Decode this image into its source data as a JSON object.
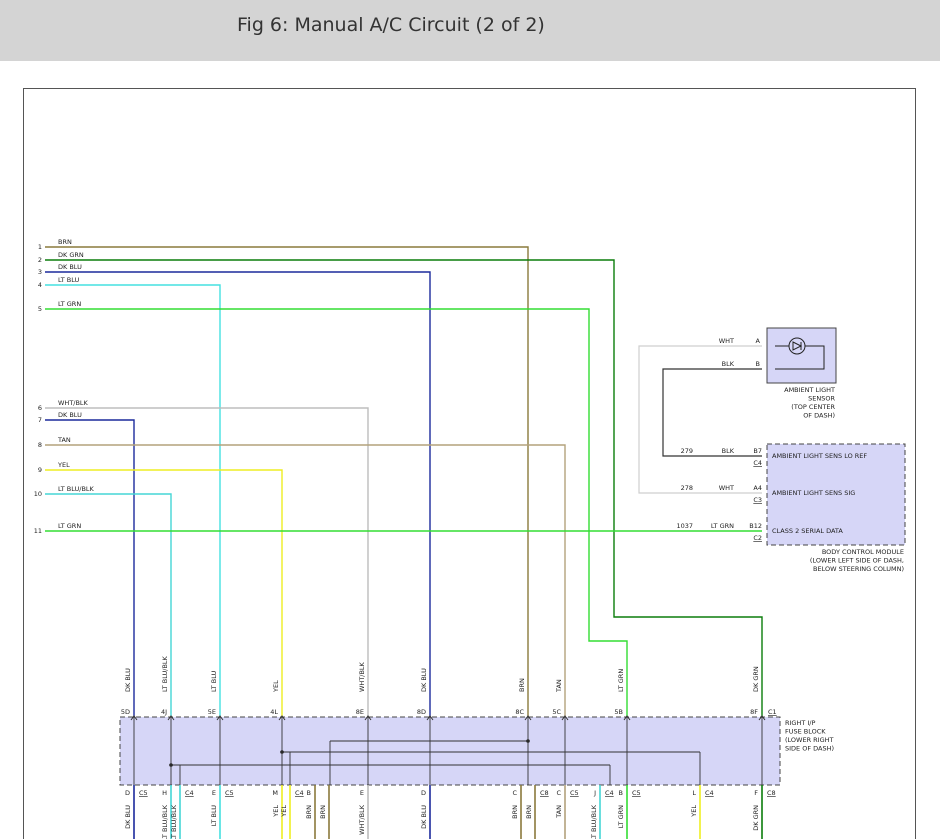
{
  "header": {
    "title": "Fig 6: Manual A/C Circuit (2 of 2)"
  },
  "wires": [
    {
      "pin": "1",
      "color": "BRN",
      "stroke": "#8a7a3c"
    },
    {
      "pin": "2",
      "color": "DK GRN",
      "stroke": "#0b7d0b"
    },
    {
      "pin": "3",
      "color": "DK BLU",
      "stroke": "#1c2a9c"
    },
    {
      "pin": "4",
      "color": "LT BLU",
      "stroke": "#45e0e0"
    },
    {
      "pin": "5",
      "color": "LT GRN",
      "stroke": "#33dd33"
    },
    {
      "pin": "6",
      "color": "WHT/BLK",
      "stroke": "#bdbdbd"
    },
    {
      "pin": "7",
      "color": "DK BLU",
      "stroke": "#1c2a9c"
    },
    {
      "pin": "8",
      "color": "TAN",
      "stroke": "#b3a27c"
    },
    {
      "pin": "9",
      "color": "YEL",
      "stroke": "#eeee22"
    },
    {
      "pin": "10",
      "color": "LT BLU/BLK",
      "stroke": "#45d6d6"
    },
    {
      "pin": "11",
      "color": "LT GRN",
      "stroke": "#33dd33"
    }
  ],
  "sensor": {
    "pins": [
      {
        "pin": "A",
        "color": "WHT"
      },
      {
        "pin": "B",
        "color": "BLK"
      }
    ],
    "label": [
      "AMBIENT LIGHT",
      "SENSOR",
      "(TOP CENTER",
      "OF DASH)"
    ]
  },
  "bcm": {
    "rows": [
      {
        "circuit": "279",
        "color": "BLK",
        "pin": "B7",
        "connector": "C4",
        "signal": "AMBIENT LIGHT SENS LO REF"
      },
      {
        "circuit": "278",
        "color": "WHT",
        "pin": "A4",
        "connector": "C3",
        "signal": "AMBIENT LIGHT SENS SIG"
      },
      {
        "circuit": "1037",
        "color": "LT GRN",
        "pin": "B12",
        "connector": "C2",
        "signal": "CLASS 2 SERIAL DATA"
      }
    ],
    "label": [
      "BODY CONTROL MODULE",
      "(LOWER LEFT SIDE OF DASH,",
      "BELOW STEERING COLUMN)"
    ]
  },
  "fuse_block": {
    "label": [
      "RIGHT I/P",
      "FUSE BLOCK",
      "(LOWER RIGHT",
      "SIDE OF DASH)"
    ],
    "connector": "C1",
    "top": [
      {
        "color": "DK BLU",
        "pin": "5D"
      },
      {
        "color": "LT BLU/BLK",
        "pin": "4J"
      },
      {
        "color": "LT BLU",
        "pin": "5E"
      },
      {
        "color": "YEL",
        "pin": "4L"
      },
      {
        "color": "WHT/BLK",
        "pin": "8E"
      },
      {
        "color": "DK BLU",
        "pin": "8D"
      },
      {
        "color": "BRN",
        "pin": "8C"
      },
      {
        "color": "TAN",
        "pin": "5C"
      },
      {
        "color": "LT GRN",
        "pin": "5B"
      },
      {
        "color": "DK GRN",
        "pin": "8F"
      }
    ],
    "bottom": [
      {
        "pin": "D",
        "connector": "C5",
        "wires": [
          "DK BLU"
        ]
      },
      {
        "pin": "H",
        "connector": "C4",
        "wires": [
          "LT BLU/BLK",
          "LT BLU/BLK"
        ]
      },
      {
        "pin": "E",
        "connector": "C5",
        "wires": [
          "LT BLU"
        ]
      },
      {
        "pin": "M",
        "connector": "C4",
        "wires": [
          "YEL",
          "YEL"
        ]
      },
      {
        "pin": "B",
        "wires": [
          "BRN",
          "BRN"
        ]
      },
      {
        "pin": "E",
        "wires": [
          "WHT/BLK"
        ]
      },
      {
        "pin": "D",
        "wires": [
          "DK BLU"
        ]
      },
      {
        "pin": "C",
        "connector": "C8",
        "wires": [
          "BRN",
          "BRN"
        ]
      },
      {
        "pin": "C",
        "connector": "C5",
        "wires": [
          "TAN"
        ]
      },
      {
        "pin": "J",
        "connector": "C4",
        "wires": [
          "LT BLU/BLK"
        ]
      },
      {
        "pin": "B",
        "connector": "C5",
        "wires": [
          "LT GRN"
        ]
      },
      {
        "pin": "L",
        "connector": "C4",
        "wires": [
          "YEL"
        ]
      },
      {
        "pin": "F",
        "connector": "C8",
        "wires": [
          "DK GRN"
        ]
      }
    ]
  }
}
